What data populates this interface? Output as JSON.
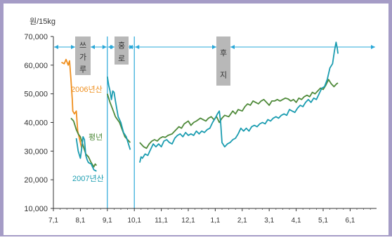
{
  "chart_data": {
    "type": "line",
    "unit_label": "원/15kg",
    "y_ticks": [
      "70,000",
      "60,000",
      "50,000",
      "40,000",
      "30,000",
      "20,000",
      "10,000"
    ],
    "x_ticks": [
      "7,1",
      "8,1",
      "9,1",
      "10,1",
      "11,1",
      "12,1",
      "1,1",
      "2,1",
      "3,1",
      "4,1",
      "5,1",
      "6,1"
    ],
    "ylim": [
      10000,
      70000
    ],
    "grid": false,
    "period_labels": [
      "쓰가루",
      "홍로",
      "후지"
    ],
    "series_labels": [
      "2006년산",
      "평년",
      "2007년산"
    ],
    "colors": {
      "y2006": "#ef8f1e",
      "avg": "#4f8a3a",
      "y2007": "#1a9cb0",
      "marker": "#2aa8d8",
      "band": "#b8b8b8",
      "frame": "#a59cc6"
    },
    "series": [
      {
        "name": "2006년산",
        "segments": [
          [
            [
              0.3,
              61000
            ],
            [
              0.4,
              60500
            ],
            [
              0.47,
              62000
            ],
            [
              0.55,
              60000
            ],
            [
              0.6,
              61500
            ],
            [
              0.65,
              55000
            ],
            [
              0.7,
              48000
            ],
            [
              0.72,
              44000
            ],
            [
              0.78,
              43000
            ],
            [
              0.85,
              44000
            ],
            [
              0.9,
              37000
            ],
            [
              1.0,
              33000
            ],
            [
              1.05,
              31000
            ]
          ]
        ]
      },
      {
        "name": "평년",
        "segments": [
          [
            [
              0.65,
              41500
            ],
            [
              0.75,
              40500
            ],
            [
              0.85,
              37500
            ],
            [
              0.92,
              36000
            ],
            [
              1.0,
              35000
            ],
            [
              1.1,
              32000
            ],
            [
              1.2,
              29000
            ],
            [
              1.3,
              28000
            ],
            [
              1.4,
              26000
            ],
            [
              1.5,
              24500
            ],
            [
              1.55,
              25500
            ],
            [
              1.6,
              25000
            ]
          ],
          [
            [
              2.0,
              50000
            ],
            [
              2.1,
              47000
            ],
            [
              2.2,
              44500
            ],
            [
              2.3,
              42000
            ],
            [
              2.45,
              40000
            ],
            [
              2.55,
              37500
            ],
            [
              2.65,
              35000
            ],
            [
              2.75,
              34000
            ],
            [
              2.85,
              33000
            ]
          ],
          [
            [
              3.2,
              33000
            ],
            [
              3.35,
              31500
            ],
            [
              3.45,
              31000
            ],
            [
              3.55,
              32500
            ],
            [
              3.65,
              33500
            ],
            [
              3.75,
              34000
            ],
            [
              3.85,
              33500
            ],
            [
              3.95,
              34500
            ],
            [
              4.05,
              35000
            ],
            [
              4.15,
              34800
            ],
            [
              4.25,
              35500
            ],
            [
              4.4,
              36000
            ],
            [
              4.55,
              37500
            ],
            [
              4.65,
              38500
            ],
            [
              4.75,
              38000
            ],
            [
              4.85,
              39500
            ],
            [
              5.0,
              40500
            ],
            [
              5.1,
              39000
            ],
            [
              5.2,
              40000
            ],
            [
              5.3,
              40500
            ],
            [
              5.45,
              41500
            ],
            [
              5.55,
              41000
            ],
            [
              5.65,
              40500
            ],
            [
              5.75,
              41500
            ],
            [
              5.85,
              42000
            ],
            [
              5.95,
              41000
            ],
            [
              6.05,
              42000
            ],
            [
              6.15,
              40000
            ],
            [
              6.25,
              41500
            ],
            [
              6.35,
              42500
            ],
            [
              6.5,
              42000
            ],
            [
              6.65,
              44000
            ],
            [
              6.75,
              43000
            ],
            [
              6.85,
              44500
            ],
            [
              7.0,
              44000
            ],
            [
              7.1,
              45500
            ],
            [
              7.2,
              46500
            ],
            [
              7.3,
              46000
            ],
            [
              7.4,
              47500
            ],
            [
              7.5,
              47000
            ],
            [
              7.6,
              46500
            ],
            [
              7.7,
              47500
            ],
            [
              7.8,
              48000
            ],
            [
              7.9,
              47000
            ],
            [
              8.0,
              46000
            ],
            [
              8.1,
              47500
            ],
            [
              8.2,
              47500
            ],
            [
              8.3,
              48000
            ],
            [
              8.4,
              47500
            ],
            [
              8.5,
              48000
            ],
            [
              8.6,
              48500
            ],
            [
              8.7,
              48200
            ],
            [
              8.8,
              47500
            ],
            [
              8.9,
              48000
            ],
            [
              9.0,
              47000
            ],
            [
              9.1,
              48500
            ],
            [
              9.2,
              48000
            ],
            [
              9.3,
              49000
            ],
            [
              9.4,
              49500
            ],
            [
              9.5,
              49000
            ],
            [
              9.6,
              50500
            ],
            [
              9.7,
              50000
            ],
            [
              9.8,
              51000
            ],
            [
              9.9,
              52000
            ],
            [
              10.0,
              51500
            ],
            [
              10.1,
              53000
            ],
            [
              10.2,
              55000
            ],
            [
              10.3,
              53500
            ],
            [
              10.4,
              52500
            ],
            [
              10.5,
              53500
            ],
            [
              10.55,
              53800
            ]
          ]
        ]
      },
      {
        "name": "2007년산",
        "segments": [
          [
            [
              0.85,
              34500
            ],
            [
              0.92,
              30000
            ],
            [
              1.0,
              27500
            ],
            [
              1.05,
              31000
            ],
            [
              1.1,
              35000
            ],
            [
              1.15,
              34000
            ],
            [
              1.2,
              28500
            ],
            [
              1.25,
              27000
            ],
            [
              1.3,
              26000
            ],
            [
              1.4,
              25500
            ],
            [
              1.5,
              23500
            ],
            [
              1.6,
              23000
            ]
          ],
          [
            [
              2.0,
              56000
            ],
            [
              2.05,
              53000
            ],
            [
              2.1,
              51000
            ],
            [
              2.15,
              48000
            ],
            [
              2.2,
              51000
            ],
            [
              2.25,
              50500
            ],
            [
              2.3,
              47500
            ],
            [
              2.4,
              42000
            ],
            [
              2.5,
              40000
            ],
            [
              2.6,
              36500
            ],
            [
              2.7,
              35000
            ],
            [
              2.8,
              32000
            ],
            [
              2.85,
              30500
            ]
          ],
          [
            [
              3.2,
              26000
            ],
            [
              3.25,
              28000
            ],
            [
              3.3,
              27500
            ],
            [
              3.4,
              29000
            ],
            [
              3.5,
              28500
            ],
            [
              3.6,
              30500
            ],
            [
              3.7,
              32500
            ],
            [
              3.8,
              31500
            ],
            [
              3.9,
              32500
            ],
            [
              4.0,
              31500
            ],
            [
              4.1,
              33500
            ],
            [
              4.2,
              34000
            ],
            [
              4.3,
              33000
            ],
            [
              4.4,
              32500
            ],
            [
              4.5,
              34500
            ],
            [
              4.6,
              35500
            ],
            [
              4.7,
              36000
            ],
            [
              4.8,
              35000
            ],
            [
              4.9,
              36500
            ],
            [
              5.0,
              35500
            ],
            [
              5.1,
              36000
            ],
            [
              5.2,
              35500
            ],
            [
              5.3,
              37000
            ],
            [
              5.4,
              36000
            ],
            [
              5.5,
              37000
            ],
            [
              5.6,
              36500
            ],
            [
              5.7,
              37500
            ],
            [
              5.8,
              38000
            ],
            [
              5.9,
              40000
            ],
            [
              6.0,
              41500
            ],
            [
              6.08,
              43000
            ],
            [
              6.15,
              44000
            ],
            [
              6.2,
              40000
            ],
            [
              6.25,
              33000
            ],
            [
              6.35,
              31500
            ],
            [
              6.45,
              32500
            ],
            [
              6.55,
              33000
            ],
            [
              6.65,
              34000
            ],
            [
              6.75,
              34500
            ],
            [
              6.85,
              36000
            ],
            [
              6.95,
              38000
            ],
            [
              7.05,
              37000
            ],
            [
              7.15,
              38000
            ],
            [
              7.25,
              37000
            ],
            [
              7.35,
              38500
            ],
            [
              7.45,
              39000
            ],
            [
              7.55,
              38500
            ],
            [
              7.65,
              39500
            ],
            [
              7.75,
              40000
            ],
            [
              7.85,
              39500
            ],
            [
              7.95,
              41000
            ],
            [
              8.05,
              40500
            ],
            [
              8.15,
              41500
            ],
            [
              8.25,
              42000
            ],
            [
              8.35,
              41500
            ],
            [
              8.45,
              42500
            ],
            [
              8.55,
              43000
            ],
            [
              8.65,
              42500
            ],
            [
              8.75,
              44500
            ],
            [
              8.85,
              44000
            ],
            [
              8.95,
              43500
            ],
            [
              9.05,
              45000
            ],
            [
              9.15,
              46000
            ],
            [
              9.25,
              45500
            ],
            [
              9.35,
              47000
            ],
            [
              9.45,
              48000
            ],
            [
              9.55,
              47000
            ],
            [
              9.65,
              48500
            ],
            [
              9.75,
              48000
            ],
            [
              9.85,
              50000
            ],
            [
              9.95,
              52000
            ],
            [
              10.05,
              52500
            ],
            [
              10.15,
              55000
            ],
            [
              10.25,
              59000
            ],
            [
              10.35,
              60500
            ],
            [
              10.42,
              65000
            ],
            [
              10.48,
              68000
            ],
            [
              10.52,
              66000
            ],
            [
              10.55,
              64000
            ]
          ]
        ]
      }
    ]
  }
}
